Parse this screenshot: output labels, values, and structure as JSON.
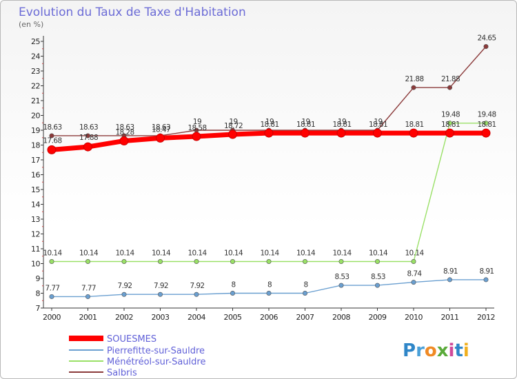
{
  "chart_data": {
    "type": "line",
    "title": "Evolution du Taux de Taxe d'Habitation",
    "ylabel": "(en %)",
    "xlabel": "",
    "x": [
      "2000",
      "2001",
      "2002",
      "2003",
      "2004",
      "2005",
      "2006",
      "2007",
      "2008",
      "2009",
      "2010",
      "2011",
      "2012"
    ],
    "ylim": [
      7,
      25
    ],
    "yticks": [
      7,
      8,
      9,
      10,
      11,
      12,
      13,
      14,
      15,
      16,
      17,
      18,
      19,
      20,
      21,
      22,
      23,
      24,
      25
    ],
    "grid": false,
    "legend_position": "bottom-left",
    "series": [
      {
        "name": "SOUESMES",
        "color": "#ff0000",
        "values": [
          17.68,
          17.88,
          18.28,
          18.47,
          18.58,
          18.72,
          18.81,
          18.81,
          18.81,
          18.81,
          18.81,
          18.81,
          18.81
        ],
        "labels": [
          "17.68",
          "17.88",
          "18.28",
          "18.47",
          "18.58",
          "18.72",
          "18.81",
          "18.81",
          "18.81",
          "18.81",
          "18.81",
          "18.81",
          "18.81"
        ]
      },
      {
        "name": "Pierrefitte-sur-Sauldre",
        "color": "#6a9fd0",
        "values": [
          7.77,
          7.77,
          7.92,
          7.92,
          7.92,
          8,
          8,
          8,
          8.53,
          8.53,
          8.74,
          8.91,
          8.91
        ],
        "labels": [
          "7.77",
          "7.77",
          "7.92",
          "7.92",
          "7.92",
          "8",
          "8",
          "8",
          "8.53",
          "8.53",
          "8.74",
          "8.91",
          "8.91"
        ]
      },
      {
        "name": "Ménétréol-sur-Sauldre",
        "color": "#99e066",
        "values": [
          10.14,
          10.14,
          10.14,
          10.14,
          10.14,
          10.14,
          10.14,
          10.14,
          10.14,
          10.14,
          10.14,
          19.48,
          19.48
        ],
        "labels": [
          "10.14",
          "10.14",
          "10.14",
          "10.14",
          "10.14",
          "10.14",
          "10.14",
          "10.14",
          "10.14",
          "10.14",
          "10.14",
          "19.48",
          "19.48"
        ]
      },
      {
        "name": "Salbris",
        "color": "#8b3a3a",
        "values": [
          18.63,
          18.63,
          18.63,
          18.63,
          19,
          19,
          19,
          19,
          19,
          19,
          21.88,
          21.88,
          24.65
        ],
        "labels": [
          "18.63",
          "18.63",
          "18.63",
          "18.63",
          "19",
          "19",
          "19",
          "19",
          "19",
          "19",
          "21.88",
          "21.88",
          "24.65"
        ]
      }
    ]
  },
  "logo": {
    "text": "Proxiti",
    "letters": [
      "P",
      "r",
      "o",
      "x",
      "i",
      "t",
      "i"
    ],
    "colors": [
      "#2f86c8",
      "#4aa0d8",
      "#f08a24",
      "#5aaa3a",
      "#d04a9a",
      "#2f86c8",
      "#f0b020"
    ]
  }
}
